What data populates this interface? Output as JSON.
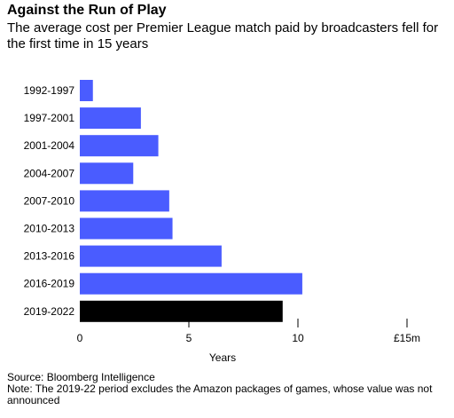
{
  "header": {
    "title": "Against the Run of Play",
    "subtitle": "The average cost per Premier League match paid by broadcasters fell for the first time in 15 years"
  },
  "footer": {
    "source": "Source: Bloomberg Intelligence",
    "note": "Note: The 2019-22 period excludes the Amazon packages of games, whose value was not announced"
  },
  "colors": {
    "default_bar": "#4a5cff",
    "highlight_bar": "#000000"
  },
  "chart_data": {
    "type": "bar",
    "orientation": "horizontal",
    "categories": [
      "1992-1997",
      "1997-2001",
      "2001-2004",
      "2004-2007",
      "2007-2010",
      "2010-2013",
      "2013-2016",
      "2016-2019",
      "2019-2022"
    ],
    "values": [
      0.6,
      2.8,
      3.6,
      2.45,
      4.1,
      4.25,
      6.5,
      10.2,
      9.3
    ],
    "highlight_index": 8,
    "xlim": [
      0,
      15
    ],
    "x_ticks": [
      0,
      5,
      10,
      15
    ],
    "x_tick_labels": [
      "0",
      "5",
      "10",
      "£15m"
    ],
    "xlabel": "Years",
    "ylabel": "",
    "grid": false,
    "legend": "none"
  }
}
